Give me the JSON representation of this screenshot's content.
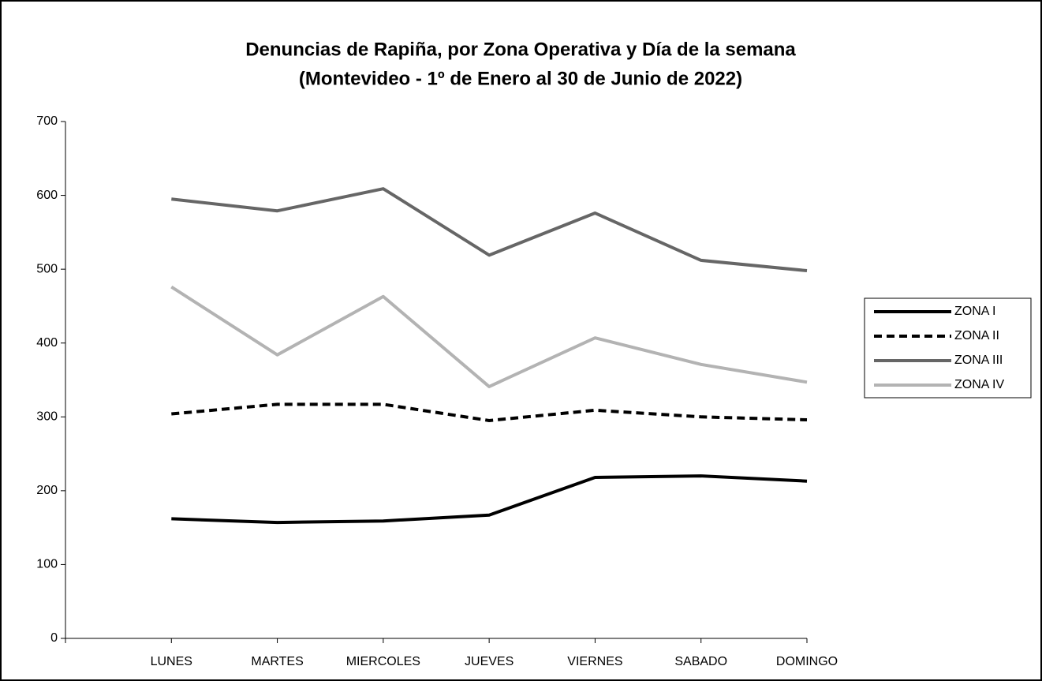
{
  "chart_data": {
    "type": "line",
    "title": [
      "Denuncias de Rapiña, por Zona Operativa y Día de la semana",
      "(Montevideo - 1º de Enero al 30 de Junio de 2022)"
    ],
    "categories": [
      null,
      "LUNES",
      "MARTES",
      "MIERCOLES",
      "JUEVES",
      "VIERNES",
      "SABADO",
      "DOMINGO"
    ],
    "series": [
      {
        "name": "ZONA I",
        "color": "#000000",
        "dash": false,
        "values": [
          null,
          162,
          157,
          159,
          167,
          218,
          220,
          213
        ]
      },
      {
        "name": "ZONA II",
        "color": "#000000",
        "dash": true,
        "values": [
          null,
          304,
          317,
          317,
          295,
          309,
          300,
          296
        ]
      },
      {
        "name": "ZONA III",
        "color": "#666666",
        "dash": false,
        "values": [
          null,
          595,
          579,
          609,
          519,
          576,
          512,
          498
        ]
      },
      {
        "name": "ZONA IV",
        "color": "#b3b3b3",
        "dash": false,
        "values": [
          null,
          476,
          384,
          463,
          341,
          407,
          371,
          347
        ]
      }
    ],
    "ylim": [
      0,
      700
    ],
    "yticks": [
      0,
      100,
      200,
      300,
      400,
      500,
      600,
      700
    ],
    "grid": false,
    "legend": "right"
  }
}
